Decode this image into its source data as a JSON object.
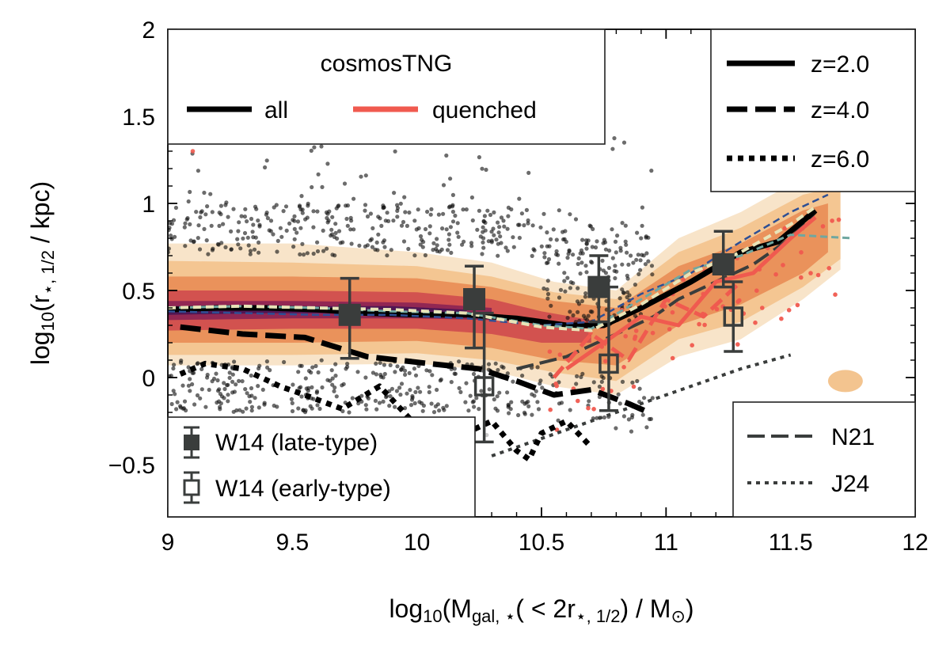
{
  "chart_data": {
    "type": "scatter",
    "xlabel": "log10(Mgal,*(<2r*,1/2)/M⊙)",
    "ylabel": "log10(r*,1/2/kpc)",
    "xlabel_parts": {
      "pre": "log",
      "sub1": "10",
      "mid": "(M",
      "sub2": "gal, ⋆",
      "mid2": "( < 2r",
      "sub3": "⋆, 1/2",
      "post": ") / M",
      "sub4": "⊙",
      "end": ")"
    },
    "ylabel_parts": {
      "pre": "log",
      "sub1": "10",
      "mid": "(r",
      "sub2": "⋆, 1/2",
      "post": " / kpc)"
    },
    "xlim": [
      9,
      12
    ],
    "ylim": [
      -0.8,
      2
    ],
    "x_ticks": [
      9,
      9.5,
      10,
      10.5,
      11,
      11.5,
      12
    ],
    "x_tick_labels": [
      "9",
      "9.5",
      "10",
      "10.5",
      "11",
      "11.5",
      "12"
    ],
    "y_ticks": [
      -0.5,
      0,
      0.5,
      1,
      1.5,
      2
    ],
    "y_tick_labels": [
      "−0.5",
      "0",
      "0.5",
      "1",
      "1.5",
      "2"
    ],
    "colors": {
      "all": "#000000",
      "quenched": "#f05a4f",
      "obs": "#3a3d3c",
      "blue": "#2e4f94",
      "teal": "#6fa7a0",
      "cream": "#e8e4b8"
    },
    "series": [
      {
        "name": "all z=2.0",
        "style": "solid",
        "x": [
          9.0,
          9.2,
          9.4,
          9.6,
          9.8,
          10.0,
          10.2,
          10.4,
          10.6,
          10.75,
          10.9,
          11.1,
          11.3,
          11.45,
          11.6
        ],
        "y": [
          0.39,
          0.4,
          0.4,
          0.39,
          0.37,
          0.36,
          0.36,
          0.34,
          0.3,
          0.3,
          0.4,
          0.55,
          0.72,
          0.78,
          0.96
        ]
      },
      {
        "name": "all z=4.0",
        "style": "dashed",
        "x": [
          9.05,
          9.3,
          9.55,
          9.8,
          10.05,
          10.25,
          10.4,
          10.55,
          10.7,
          10.85,
          10.93
        ],
        "y": [
          0.29,
          0.25,
          0.23,
          0.12,
          0.08,
          0.05,
          -0.02,
          -0.1,
          -0.07,
          -0.15,
          -0.2
        ]
      },
      {
        "name": "all z=6.0",
        "style": "dotted",
        "x": [
          9.05,
          9.15,
          9.3,
          9.45,
          9.55,
          9.7,
          9.85,
          10.0,
          10.15,
          10.3,
          10.4,
          10.45,
          10.5,
          10.6,
          10.7
        ],
        "y": [
          0.02,
          0.08,
          0.05,
          -0.05,
          -0.1,
          -0.18,
          -0.05,
          -0.28,
          -0.35,
          -0.25,
          -0.42,
          -0.47,
          -0.32,
          -0.25,
          -0.4
        ]
      },
      {
        "name": "quenched z=2.0",
        "style": "solid",
        "x": [
          10.6,
          10.75,
          10.9,
          11.05,
          11.2,
          11.35,
          11.5,
          11.6
        ],
        "y": [
          0.05,
          0.2,
          0.35,
          0.3,
          0.55,
          0.6,
          0.8,
          0.92
        ]
      },
      {
        "name": "quenched z=4.0",
        "style": "dashed",
        "x": [
          10.55,
          10.7,
          10.85,
          11.0,
          11.15,
          11.3
        ],
        "y": [
          0.0,
          0.25,
          0.1,
          0.45,
          0.35,
          0.55
        ]
      },
      {
        "name": "N21",
        "style": "dashed",
        "x": [
          10.4,
          10.6,
          10.8,
          10.95,
          11.05,
          11.2,
          11.35,
          11.5,
          11.6
        ],
        "y": [
          0.05,
          0.12,
          0.25,
          0.35,
          0.45,
          0.55,
          0.65,
          0.8,
          0.95
        ]
      },
      {
        "name": "J24",
        "style": "dotted",
        "x": [
          10.3,
          10.5,
          10.7,
          10.9,
          11.1,
          11.3,
          11.5
        ],
        "y": [
          -0.45,
          -0.35,
          -0.25,
          -0.15,
          -0.05,
          0.05,
          0.13
        ]
      },
      {
        "name": "blue variant",
        "style": "dashed",
        "x": [
          9.0,
          9.3,
          9.6,
          9.9,
          10.2,
          10.5,
          10.7,
          10.9,
          11.1,
          11.3,
          11.5,
          11.65
        ],
        "y": [
          0.38,
          0.37,
          0.36,
          0.36,
          0.34,
          0.3,
          0.32,
          0.48,
          0.6,
          0.78,
          0.95,
          1.05
        ]
      },
      {
        "name": "teal variant",
        "style": "dashed",
        "x": [
          9.0,
          9.3,
          9.6,
          9.9,
          10.2,
          10.5,
          10.7,
          10.9,
          11.1,
          11.3,
          11.5,
          11.75
        ],
        "y": [
          0.4,
          0.41,
          0.4,
          0.38,
          0.37,
          0.3,
          0.28,
          0.45,
          0.62,
          0.7,
          0.82,
          0.8
        ]
      },
      {
        "name": "cream variant",
        "style": "dashed",
        "x": [
          9.0,
          9.3,
          9.6,
          9.9,
          10.2,
          10.5,
          10.7,
          10.9,
          11.1,
          11.3,
          11.5,
          11.6
        ],
        "y": [
          0.4,
          0.41,
          0.4,
          0.39,
          0.37,
          0.29,
          0.27,
          0.42,
          0.6,
          0.72,
          0.88,
          0.98
        ]
      }
    ],
    "w14_late": {
      "label": "W14 (late-type)",
      "x": [
        9.73,
        10.23,
        10.73,
        11.23
      ],
      "y": [
        0.36,
        0.45,
        0.52,
        0.65
      ],
      "yerr_low": [
        0.25,
        0.28,
        0.2,
        0.13
      ],
      "yerr_high": [
        0.21,
        0.19,
        0.18,
        0.19
      ]
    },
    "w14_early": {
      "label": "W14 (early-type)",
      "x": [
        10.27,
        10.77,
        11.27
      ],
      "y": [
        -0.05,
        0.08,
        0.35
      ],
      "yerr_low": [
        0.32,
        0.27,
        0.2
      ],
      "yerr_high": [
        0.42,
        0.44,
        0.2
      ]
    },
    "density_bands": [
      {
        "x": [
          9.0,
          9.5,
          10.0,
          10.3,
          10.55,
          10.8,
          11.05,
          11.3,
          11.55,
          11.7
        ],
        "lo": [
          0.07,
          0.07,
          0.08,
          0.04,
          -0.05,
          -0.1,
          0.12,
          0.22,
          0.45,
          0.62
        ],
        "hi": [
          0.77,
          0.77,
          0.72,
          0.66,
          0.55,
          0.5,
          0.8,
          0.95,
          1.15,
          1.2
        ],
        "color": "#f8e3c6"
      },
      {
        "x": [
          9.0,
          9.5,
          10.0,
          10.3,
          10.55,
          10.8,
          11.05,
          11.3,
          11.55,
          11.7
        ],
        "lo": [
          0.13,
          0.13,
          0.14,
          0.1,
          0.03,
          -0.02,
          0.22,
          0.32,
          0.52,
          0.68
        ],
        "hi": [
          0.67,
          0.66,
          0.64,
          0.58,
          0.49,
          0.45,
          0.72,
          0.86,
          1.05,
          1.1
        ],
        "color": "#f3c48f"
      },
      {
        "x": [
          9.0,
          9.5,
          10.0,
          10.3,
          10.55,
          10.8,
          11.05,
          11.3,
          11.55,
          11.65
        ],
        "lo": [
          0.2,
          0.2,
          0.21,
          0.17,
          0.1,
          0.07,
          0.3,
          0.42,
          0.6,
          0.72
        ],
        "hi": [
          0.58,
          0.58,
          0.57,
          0.52,
          0.44,
          0.4,
          0.64,
          0.77,
          0.96,
          1.0
        ],
        "color": "#e98f58"
      },
      {
        "x": [
          9.0,
          9.5,
          10.0,
          10.3,
          10.5,
          10.7
        ],
        "lo": [
          0.27,
          0.28,
          0.28,
          0.25,
          0.2,
          0.2
        ],
        "hi": [
          0.5,
          0.5,
          0.49,
          0.45,
          0.38,
          0.33
        ],
        "color": "#d14f4f"
      },
      {
        "x": [
          9.0,
          9.5,
          10.0,
          10.3
        ],
        "lo": [
          0.33,
          0.34,
          0.34,
          0.33
        ],
        "hi": [
          0.44,
          0.44,
          0.43,
          0.4
        ],
        "color": "#8e2553"
      },
      {
        "x": [
          9.0,
          9.4,
          9.9,
          10.2
        ],
        "lo": [
          0.36,
          0.37,
          0.37,
          0.36
        ],
        "hi": [
          0.41,
          0.41,
          0.41,
          0.39
        ],
        "color": "#4c1553"
      }
    ],
    "legend_sim": {
      "title": "cosmosTNG",
      "entries": [
        "all",
        "quenched"
      ],
      "position": "upper-left"
    },
    "legend_z": {
      "entries": [
        "z=2.0",
        "z=4.0",
        "z=6.0"
      ],
      "position": "upper-right"
    },
    "legend_obs": {
      "entries": [
        "W14 (late-type)",
        "W14 (early-type)"
      ],
      "position": "lower-left"
    },
    "legend_lit": {
      "entries": [
        "N21",
        "J24"
      ],
      "position": "lower-right"
    }
  }
}
